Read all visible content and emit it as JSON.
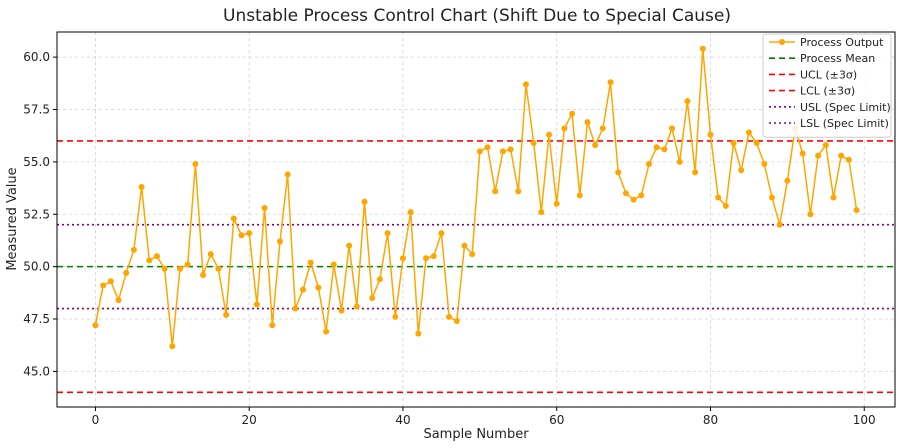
{
  "chart_data": {
    "type": "line",
    "title": "Unstable Process Control Chart (Shift Due to Special Cause)",
    "xlabel": "Sample Number",
    "ylabel": "Measured Value",
    "xlim": [
      -5,
      104
    ],
    "ylim": [
      43.3,
      61.2
    ],
    "xticks": [
      0,
      20,
      40,
      60,
      80,
      100
    ],
    "yticks": [
      45.0,
      47.5,
      50.0,
      52.5,
      55.0,
      57.5,
      60.0
    ],
    "grid": true,
    "legend_position": "top-right",
    "series": [
      {
        "name": "Process Output",
        "color": "#FFA500",
        "style": "line-with-markers",
        "x": [
          0,
          1,
          2,
          3,
          4,
          5,
          6,
          7,
          8,
          9,
          10,
          11,
          12,
          13,
          14,
          15,
          16,
          17,
          18,
          19,
          20,
          21,
          22,
          23,
          24,
          25,
          26,
          27,
          28,
          29,
          30,
          31,
          32,
          33,
          34,
          35,
          36,
          37,
          38,
          39,
          40,
          41,
          42,
          43,
          44,
          45,
          46,
          47,
          48,
          49,
          50,
          51,
          52,
          53,
          54,
          55,
          56,
          57,
          58,
          59,
          60,
          61,
          62,
          63,
          64,
          65,
          66,
          67,
          68,
          69,
          70,
          71,
          72,
          73,
          74,
          75,
          76,
          77,
          78,
          79,
          80,
          81,
          82,
          83,
          84,
          85,
          86,
          87,
          88,
          89,
          90,
          91,
          92,
          93,
          94,
          95,
          96,
          97,
          98,
          99
        ],
        "values": [
          47.2,
          49.1,
          49.3,
          48.4,
          49.7,
          50.8,
          53.8,
          50.3,
          50.5,
          49.9,
          46.2,
          49.9,
          50.1,
          54.9,
          49.6,
          50.6,
          49.9,
          47.7,
          52.3,
          51.5,
          51.6,
          48.2,
          52.8,
          47.2,
          51.2,
          54.4,
          48.0,
          48.9,
          50.2,
          49.0,
          46.9,
          50.1,
          47.9,
          51.0,
          48.1,
          53.1,
          48.5,
          49.4,
          51.6,
          47.6,
          50.4,
          52.6,
          46.8,
          50.4,
          50.5,
          51.6,
          47.6,
          47.4,
          51.0,
          50.6,
          55.5,
          55.7,
          53.6,
          55.5,
          55.6,
          53.6,
          58.7,
          55.9,
          52.6,
          56.3,
          53.0,
          56.6,
          57.3,
          53.4,
          56.9,
          55.8,
          56.6,
          58.8,
          54.5,
          53.5,
          53.2,
          53.4,
          54.9,
          55.7,
          55.6,
          56.6,
          55.0,
          57.9,
          54.5,
          60.4,
          56.3,
          53.3,
          52.9,
          55.9,
          54.6,
          56.4,
          55.9,
          54.9,
          53.3,
          52.0,
          54.1,
          56.6,
          55.4,
          52.5,
          55.3,
          55.8,
          53.3,
          55.3,
          55.1,
          52.7
        ]
      }
    ],
    "reference_lines": [
      {
        "name": "Process Mean",
        "value": 50.0,
        "color": "#008000",
        "dash": "dashed"
      },
      {
        "name": "UCL (±3σ)",
        "value": 56.0,
        "color": "#FF0000",
        "dash": "dashed"
      },
      {
        "name": "LCL (±3σ)",
        "value": 44.0,
        "color": "#FF0000",
        "dash": "dashed"
      },
      {
        "name": "USL (Spec Limit)",
        "value": 52.0,
        "color": "#800080",
        "dash": "dotted"
      },
      {
        "name": "LSL (Spec Limit)",
        "value": 48.0,
        "color": "#800080",
        "dash": "dotted"
      }
    ]
  }
}
